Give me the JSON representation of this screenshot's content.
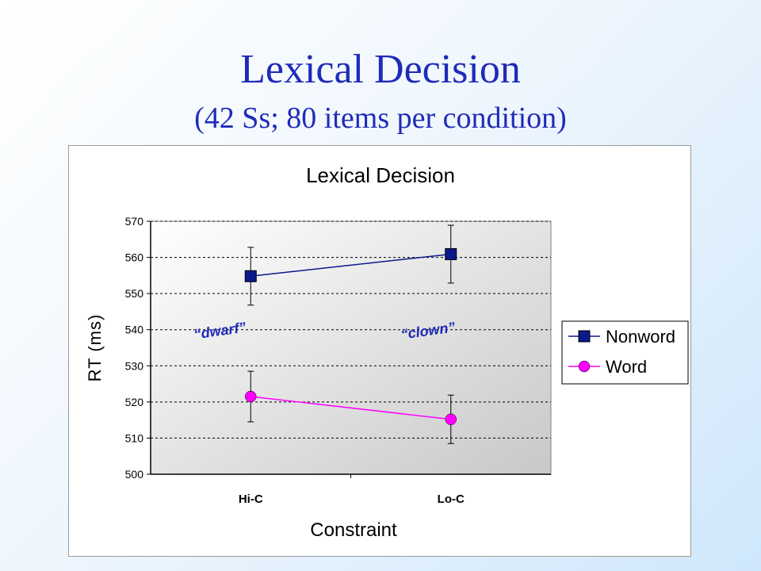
{
  "slide": {
    "title": "Lexical Decision",
    "subtitle": "(42 Ss;  80 items per condition)"
  },
  "chart_data": {
    "type": "line",
    "title": "Lexical Decision",
    "xlabel": "Constraint",
    "ylabel": "RT (ms)",
    "categories": [
      "Hi-C",
      "Lo-C"
    ],
    "ylim": [
      500,
      570
    ],
    "yticks": [
      500,
      510,
      520,
      530,
      540,
      550,
      560,
      570
    ],
    "grid": true,
    "legend_position": "right",
    "series": [
      {
        "name": "Nonword",
        "values": [
          554.8,
          560.9
        ],
        "error": [
          8,
          8
        ],
        "color": "#0a1a8c",
        "marker": "square"
      },
      {
        "name": "Word",
        "values": [
          521.5,
          515.2
        ],
        "error": [
          7,
          6.7
        ],
        "color": "#ff00ff",
        "marker": "circle"
      }
    ],
    "annotations": [
      {
        "text": "“dwarf”",
        "category": "Hi-C"
      },
      {
        "text": "“clown”",
        "category": "Lo-C"
      }
    ]
  }
}
